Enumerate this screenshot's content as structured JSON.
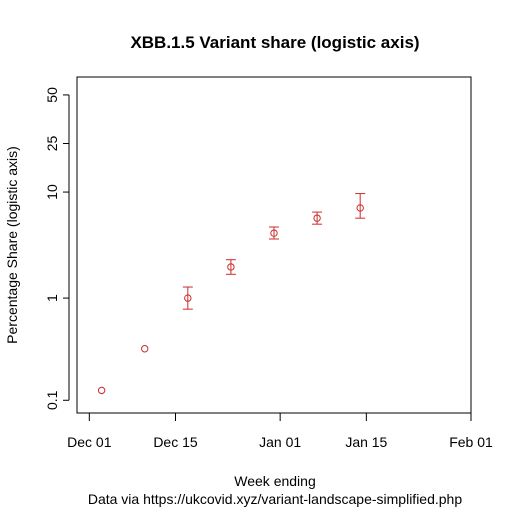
{
  "chart_data": {
    "type": "scatter",
    "title": "XBB.1.5 Variant share (logistic axis)",
    "xlabel": "Week ending",
    "ylabel": "Percentage Share (logistic axis)",
    "caption": "Data via https://ukcovid.xyz/variant-landscape-simplified.php",
    "y_scale": "logit",
    "x_ticks": [
      {
        "date": "2022-12-01",
        "label": "Dec 01"
      },
      {
        "date": "2022-12-15",
        "label": "Dec 15"
      },
      {
        "date": "2023-01-01",
        "label": "Jan 01"
      },
      {
        "date": "2023-01-15",
        "label": "Jan 15"
      },
      {
        "date": "2023-02-01",
        "label": "Feb 01"
      }
    ],
    "y_ticks": [
      {
        "value": 0.1,
        "label": "0.1"
      },
      {
        "value": 1,
        "label": "1"
      },
      {
        "value": 10,
        "label": "10"
      },
      {
        "value": 25,
        "label": "25"
      },
      {
        "value": 50,
        "label": "50"
      }
    ],
    "points": [
      {
        "date": "2022-12-03",
        "y": 0.125,
        "lower": null,
        "upper": null
      },
      {
        "date": "2022-12-10",
        "y": 0.32,
        "lower": null,
        "upper": null
      },
      {
        "date": "2022-12-17",
        "y": 1.0,
        "lower": 0.78,
        "upper": 1.28
      },
      {
        "date": "2022-12-24",
        "y": 2.0,
        "lower": 1.7,
        "upper": 2.35
      },
      {
        "date": "2022-12-31",
        "y": 4.2,
        "lower": 3.7,
        "upper": 4.8
      },
      {
        "date": "2023-01-07",
        "y": 5.8,
        "lower": 5.1,
        "upper": 6.6
      },
      {
        "date": "2023-01-14",
        "y": 7.2,
        "lower": 5.8,
        "upper": 9.7
      }
    ],
    "xlim": [
      "2022-11-29",
      "2023-02-01"
    ],
    "ylim": [
      0.075,
      60
    ],
    "point_color": "#cc2b2b",
    "grid": false,
    "legend": "none"
  }
}
